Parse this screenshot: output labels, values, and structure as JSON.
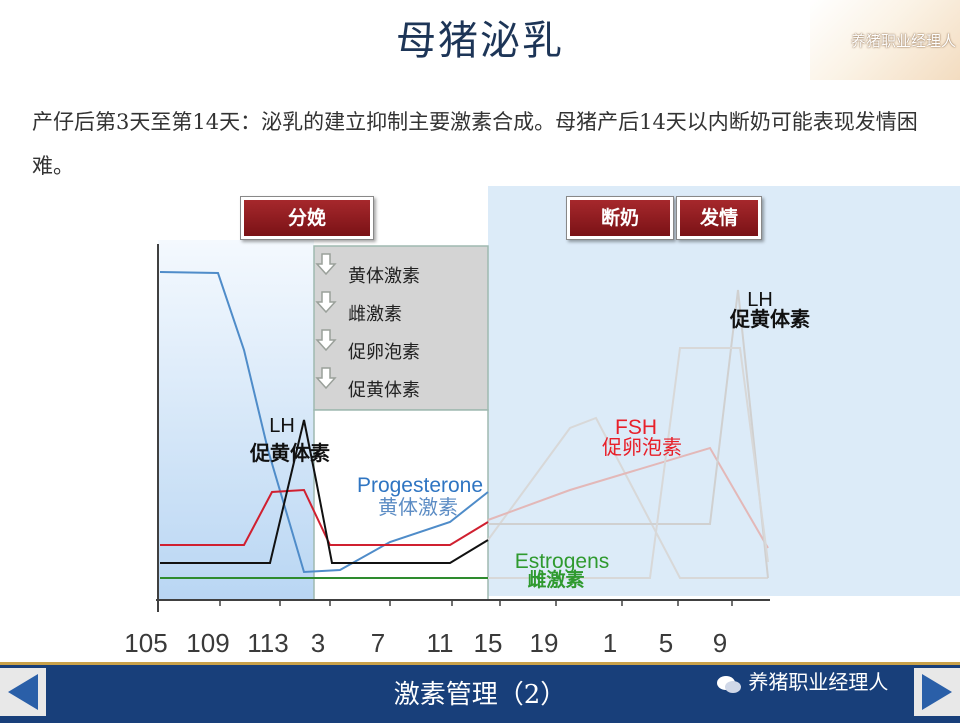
{
  "title": "母猪泌乳",
  "brand": "养猪职业经理人",
  "intro": "产仔后第3天至第14天：泌乳的建立抑制主要激素合成。母猪产后14天以内断奶可能表现发情困难。",
  "phases": {
    "farrowing": "分娩",
    "weaning": "断奶",
    "estrus": "发情"
  },
  "suppressed_box": {
    "items": [
      "黄体激素",
      "雌激素",
      "促卵泡素",
      "促黄体素"
    ],
    "icon": "down-arrow-icon"
  },
  "footer": {
    "title": "激素管理（2）",
    "brand": "养猪职业经理人",
    "prev_icon": "left-arrow-icon",
    "next_icon": "right-arrow-icon"
  },
  "chart_data": {
    "type": "line",
    "x_ticks": [
      "105",
      "109",
      "113",
      "3",
      "7",
      "11",
      "15",
      "19",
      "1",
      "5",
      "9"
    ],
    "series_labels": [
      {
        "en": "LH",
        "cn": "促黄体素",
        "color": "#111111"
      },
      {
        "en": "Progesterone",
        "cn": "黄体激素",
        "color": "#2f75c2"
      },
      {
        "en": "FSH",
        "cn": "促卵泡素",
        "color": "#e8202a"
      },
      {
        "en": "Estrogens",
        "cn": "雌激素",
        "color": "#2f9a2f"
      },
      {
        "en": "LH",
        "cn": "促黄体素",
        "color": "#111111"
      }
    ],
    "colors": {
      "pregnancy_bg": "#cfe3f7",
      "after_weaning_bg": "#dfedf8",
      "suppressed_box_bg": "#d6d6d6"
    }
  }
}
